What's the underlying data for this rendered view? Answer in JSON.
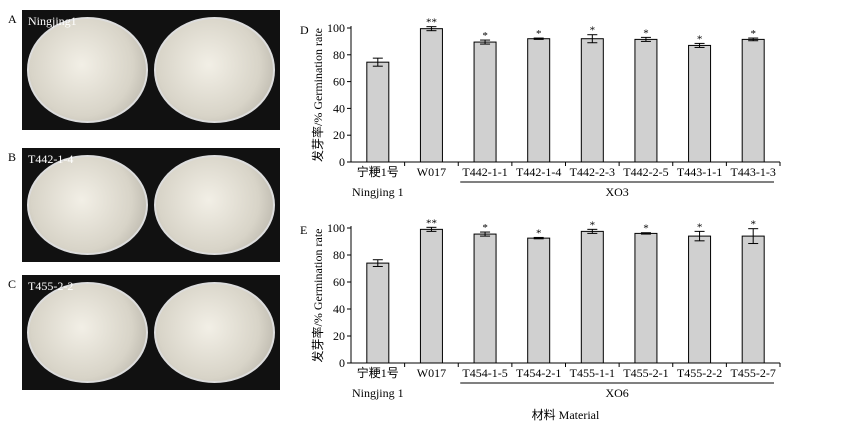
{
  "panels": {
    "A": {
      "letter": "A",
      "caption": "Ningjing1"
    },
    "B": {
      "letter": "B",
      "caption": "T442-1-4"
    },
    "C": {
      "letter": "C",
      "caption": "T455-2-2"
    }
  },
  "chart_data": [
    {
      "panel": "D",
      "type": "bar",
      "ylabel": "发芽率/%  Germination rate",
      "ylim": [
        0,
        100
      ],
      "yticks": [
        0,
        20,
        40,
        60,
        80,
        100
      ],
      "categories": [
        "宁粳1号",
        "W017",
        "T442-1-1",
        "T442-1-4",
        "T442-2-3",
        "T442-2-5",
        "T443-1-1",
        "T443-1-3"
      ],
      "values": [
        74.5,
        99.5,
        89.5,
        92,
        92,
        91.5,
        87,
        91.5
      ],
      "errors": [
        3,
        1.5,
        1.5,
        0.5,
        3,
        1.5,
        1.5,
        1
      ],
      "significance": [
        "",
        "**",
        "*",
        "*",
        "*",
        "*",
        "*",
        "*"
      ],
      "sub_label": "Ningjing 1",
      "group_label": "XO3"
    },
    {
      "panel": "E",
      "type": "bar",
      "ylabel": "发芽率/%  Germination rate",
      "ylim": [
        0,
        100
      ],
      "yticks": [
        0,
        20,
        40,
        60,
        80,
        100
      ],
      "categories": [
        "宁粳1号",
        "W017",
        "T454-1-5",
        "T454-2-1",
        "T455-1-1",
        "T455-2-1",
        "T455-2-2",
        "T455-2-7"
      ],
      "values": [
        74,
        99,
        95.5,
        92.5,
        97.5,
        96,
        94,
        94
      ],
      "errors": [
        2.5,
        1.5,
        1.5,
        0.5,
        1.5,
        0.5,
        3.5,
        5.5
      ],
      "significance": [
        "",
        "**",
        "*",
        "*",
        "*",
        "*",
        "*",
        "*"
      ],
      "sub_label": "Ningjing 1",
      "group_label": "XO6",
      "xlabel": "材料 Material"
    }
  ],
  "colors": {
    "bar": "#d0d0d0",
    "axis": "#000000"
  }
}
